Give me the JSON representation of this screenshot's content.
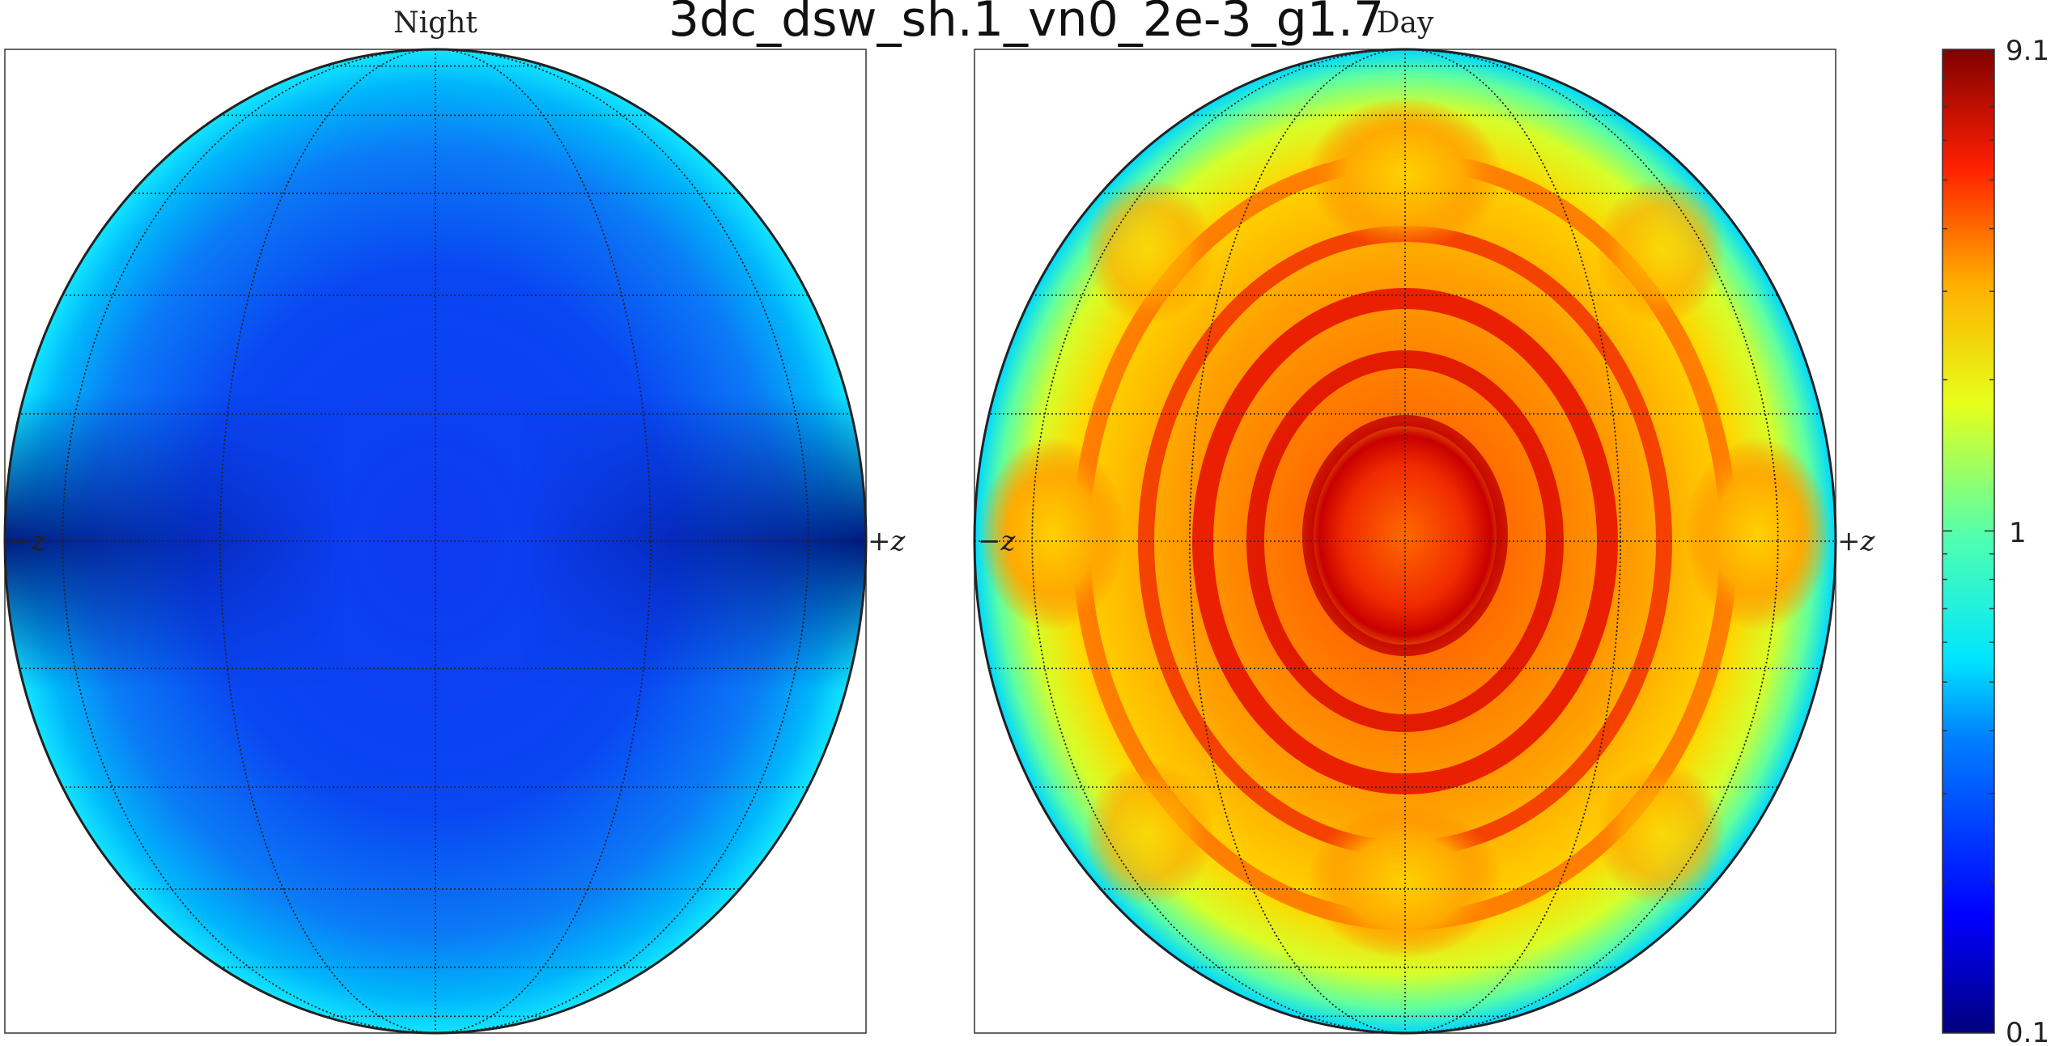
{
  "figure": {
    "title": "3dc_dsw_sh.1_vn0_2e-3_g1.7"
  },
  "panels": [
    {
      "title": "Night",
      "left_label": "−z",
      "right_label": "+z"
    },
    {
      "title": "Day",
      "left_label": "−z",
      "right_label": "+z"
    }
  ],
  "colorbar": {
    "top_label": "9.1",
    "mid_label": "1",
    "bottom_label": "0.1",
    "scale": "log",
    "colormap": "jet"
  },
  "chart_data": [
    {
      "type": "heatmap",
      "title": "Night",
      "projection": "orthographic globe",
      "value_range": [
        0.1,
        9.1
      ],
      "pattern": "nearly uniform blue disk, darkest (~0.15) near the ±z limb at the equator, lighter cyan (~0.4) toward the top and bottom rims"
    },
    {
      "type": "heatmap",
      "title": "Day",
      "projection": "orthographic globe",
      "value_range": [
        0.1,
        9.1
      ],
      "pattern": "dark-red central spot (~7) surrounded by concentric red/orange rings (~3-5), yellow-orange lobes near the ±z points and top/bottom, cyan limb (~0.5)"
    }
  ]
}
